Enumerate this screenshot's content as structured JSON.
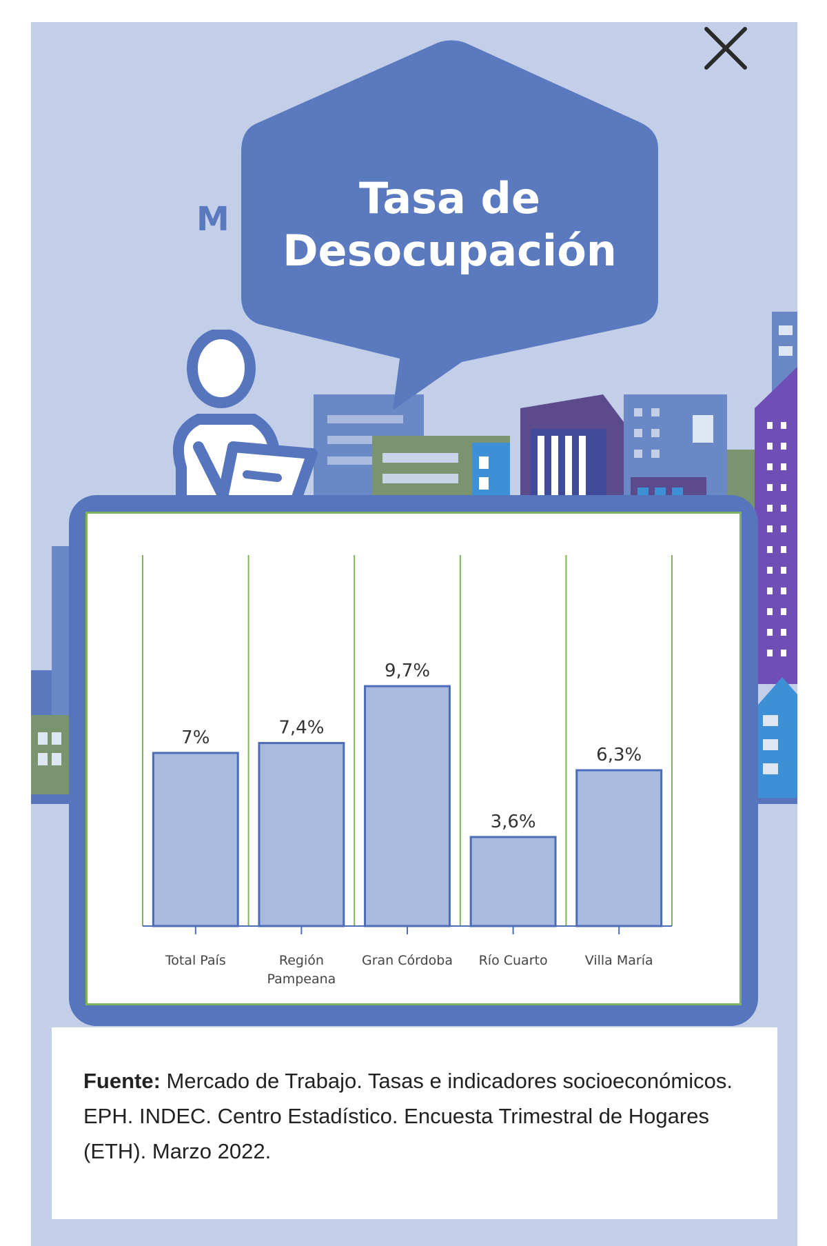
{
  "header": {
    "title_line1": "Tasa de",
    "title_line2": "Desocupación",
    "hidden_letter": "M"
  },
  "close_button": {
    "icon": "close-icon"
  },
  "colors": {
    "background": "#c3cfe9",
    "bubble": "#5b79be",
    "frame": "#5675bd",
    "bar_fill": "#a9badf",
    "bar_stroke": "#4b6cb8",
    "gridline": "#7fb35a"
  },
  "chart_data": {
    "type": "bar",
    "title": "Tasa de Desocupación",
    "categories": [
      "Total País",
      "Región Pampeana",
      "Gran Córdoba",
      "Río Cuarto",
      "Villa María"
    ],
    "category_lines": [
      [
        "Total País"
      ],
      [
        "Región",
        "Pampeana"
      ],
      [
        "Gran Córdoba"
      ],
      [
        "Río Cuarto"
      ],
      [
        "Villa María"
      ]
    ],
    "values": [
      7.0,
      7.4,
      9.7,
      3.6,
      6.3
    ],
    "data_labels": [
      "7%",
      "7,4%",
      "9,7%",
      "3,6%",
      "6,3%"
    ],
    "ylim": [
      0,
      15
    ],
    "unit": "%",
    "grid": "vertical",
    "legend": "none"
  },
  "source": {
    "label": "Fuente:",
    "text": " Mercado de Trabajo. Tasas e indicadores socioeconómicos. EPH. INDEC. Centro Estadístico. Encuesta Trimestral de Hogares (ETH). Marzo 2022."
  }
}
